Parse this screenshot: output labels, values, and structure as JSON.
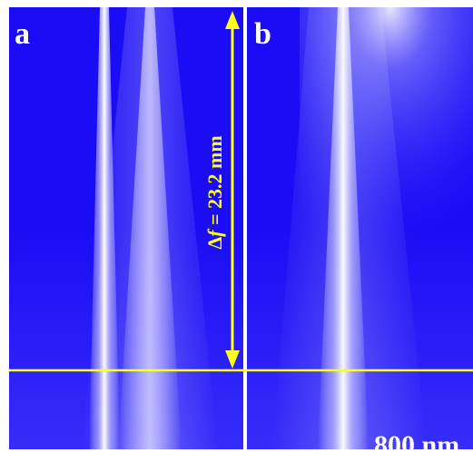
{
  "panels": [
    {
      "label": "a"
    },
    {
      "label": "b"
    }
  ],
  "annotation": {
    "prefix": "Δ",
    "variable": "f",
    "suffix": " = 23.2 mm"
  },
  "scale_bar": {
    "label": "800 nm"
  }
}
